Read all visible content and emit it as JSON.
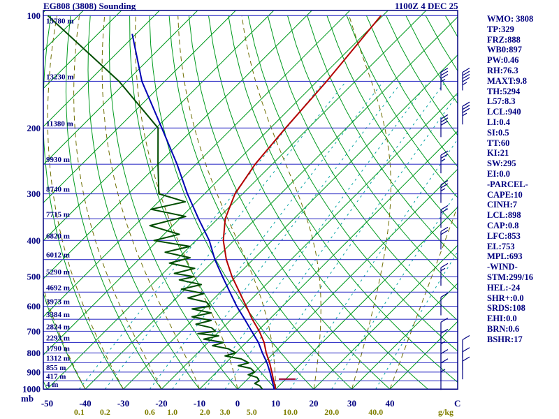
{
  "header": {
    "title": "EG808 (3808) Sounding",
    "datetime": "1100Z  4 DEC 25"
  },
  "axes": {
    "pressure_unit": "mb",
    "pressure_ticks": [
      100,
      200,
      300,
      400,
      500,
      600,
      700,
      800,
      900,
      1000
    ],
    "temp_unit": "C",
    "temp_ticks": [
      -50,
      -40,
      -30,
      -20,
      -10,
      0,
      10,
      20,
      30,
      40
    ],
    "mixing_unit": "g/kg",
    "mixing_ticks": [
      0.1,
      0.2,
      0.6,
      1.0,
      2.0,
      3.0,
      5.0,
      10.0,
      20.0,
      40.0
    ]
  },
  "indices": {
    "lines": [
      "WMO: 3808",
      "TP:329",
      "FRZ:888",
      "WB0:897",
      "PW:0.46",
      "RH:76.3",
      "MAXT:9.8",
      "TH:5294",
      "L57:8.3",
      "LCL:940",
      "LI:0.4",
      "SI:0.5",
      "TT:60",
      "KI:21",
      "SW:295",
      "EI:0.0",
      "-PARCEL-",
      "CAPE:10",
      "CINH:7",
      "LCL:898",
      "CAP:0.8",
      "LFC:853",
      "EL:753",
      "MPL:693",
      "-WIND-",
      "STM:299/16",
      "HEL:-24",
      "SHR+:0.0",
      "SRDS:108",
      "EHI:0.0",
      "BRN:0.6",
      "BSHR:17"
    ]
  },
  "colors": {
    "background": "#ffffff",
    "frame": "#000080",
    "isobar": "#3a3ac8",
    "isotherm": "#009a1e",
    "dry_adiabat": "#009a1e",
    "moist_adiabat": "#6e6e00",
    "mixing_ratio": "#00a2a2",
    "temperature_trace": "#b40000",
    "wetbulb_trace": "#0000b4",
    "dewpoint_trace": "#004d00",
    "axis_text": "#000080",
    "mixing_text": "#7f7f00",
    "wind_barb": "#000080",
    "marker": "#990033"
  },
  "chart_data": {
    "type": "line",
    "variant": "skew-t-log-p-sounding",
    "skew_deg": 45,
    "pressure_range": [
      1000,
      100
    ],
    "surface_temp_range_c": [
      -55,
      45
    ],
    "isobar_step_mb": 50,
    "heights": [
      {
        "p": 100,
        "label": "15780 m"
      },
      {
        "p": 150,
        "label": "13230 m"
      },
      {
        "p": 200,
        "label": "11380 m"
      },
      {
        "p": 250,
        "label": "9930 m"
      },
      {
        "p": 300,
        "label": "8740 m"
      },
      {
        "p": 350,
        "label": "7715 m"
      },
      {
        "p": 400,
        "label": "6820 m"
      },
      {
        "p": 450,
        "label": "6012 m"
      },
      {
        "p": 500,
        "label": "5290 m"
      },
      {
        "p": 550,
        "label": "4692 m"
      },
      {
        "p": 600,
        "label": "3973 m"
      },
      {
        "p": 650,
        "label": "3384 m"
      },
      {
        "p": 700,
        "label": "2824 m"
      },
      {
        "p": 750,
        "label": "2293 m"
      },
      {
        "p": 800,
        "label": "1790 m"
      },
      {
        "p": 850,
        "label": "1312 m"
      },
      {
        "p": 900,
        "label": "855 m"
      },
      {
        "p": 950,
        "label": "417 m"
      },
      {
        "p": 1000,
        "label": "4 m"
      }
    ],
    "series": [
      {
        "name": "temperature",
        "color": "#b40000",
        "points": [
          [
            100,
            -60.5
          ],
          [
            150,
            -57.5
          ],
          [
            200,
            -56
          ],
          [
            250,
            -54.5
          ],
          [
            300,
            -52
          ],
          [
            350,
            -48
          ],
          [
            400,
            -42.8
          ],
          [
            450,
            -37
          ],
          [
            500,
            -31
          ],
          [
            550,
            -25
          ],
          [
            600,
            -19.5
          ],
          [
            650,
            -14.5
          ],
          [
            700,
            -9.5
          ],
          [
            750,
            -5.3
          ],
          [
            800,
            -2
          ],
          [
            850,
            1.5
          ],
          [
            900,
            4.5
          ],
          [
            950,
            7.3
          ],
          [
            1000,
            10
          ]
        ]
      },
      {
        "name": "wetbulb",
        "color": "#0000b4",
        "points": [
          [
            112,
            -121
          ],
          [
            150,
            -106
          ],
          [
            200,
            -88.5
          ],
          [
            250,
            -75
          ],
          [
            300,
            -64.5
          ],
          [
            350,
            -55
          ],
          [
            400,
            -46.5
          ],
          [
            450,
            -40
          ],
          [
            500,
            -33.5
          ],
          [
            550,
            -27.5
          ],
          [
            600,
            -22
          ],
          [
            650,
            -16.5
          ],
          [
            700,
            -11.5
          ],
          [
            750,
            -6.8
          ],
          [
            800,
            -3
          ],
          [
            850,
            0.8
          ],
          [
            900,
            4
          ],
          [
            950,
            6.9
          ],
          [
            1000,
            9.6
          ]
        ]
      },
      {
        "name": "dewpoint",
        "color": "#004d00",
        "points": [
          [
            100,
            -148
          ],
          [
            150,
            -112
          ],
          [
            200,
            -89.5
          ],
          [
            250,
            -80
          ],
          [
            300,
            -72
          ],
          [
            315,
            -63
          ],
          [
            330,
            -70
          ],
          [
            345,
            -59
          ],
          [
            365,
            -66
          ],
          [
            385,
            -56
          ],
          [
            400,
            -61
          ],
          [
            415,
            -50
          ],
          [
            430,
            -55
          ],
          [
            445,
            -47
          ],
          [
            460,
            -51
          ],
          [
            475,
            -43
          ],
          [
            490,
            -47
          ],
          [
            500,
            -41
          ],
          [
            510,
            -44
          ],
          [
            525,
            -37
          ],
          [
            540,
            -41
          ],
          [
            555,
            -34
          ],
          [
            570,
            -37
          ],
          [
            585,
            -31
          ],
          [
            600,
            -29
          ],
          [
            610,
            -33
          ],
          [
            625,
            -27
          ],
          [
            640,
            -31
          ],
          [
            655,
            -25
          ],
          [
            670,
            -28
          ],
          [
            685,
            -23
          ],
          [
            700,
            -21
          ],
          [
            710,
            -25
          ],
          [
            720,
            -19
          ],
          [
            735,
            -22
          ],
          [
            750,
            -16
          ],
          [
            765,
            -18
          ],
          [
            780,
            -13
          ],
          [
            800,
            -10
          ],
          [
            815,
            -12
          ],
          [
            830,
            -7
          ],
          [
            850,
            -4
          ],
          [
            865,
            -6
          ],
          [
            880,
            -2
          ],
          [
            900,
            0
          ],
          [
            915,
            -1
          ],
          [
            930,
            2
          ],
          [
            950,
            3.5
          ],
          [
            965,
            3
          ],
          [
            980,
            5
          ],
          [
            1000,
            6.5
          ]
        ]
      }
    ],
    "lcl_marker": {
      "p": 940,
      "t_from": 8.2,
      "t_to": 12.6
    },
    "winds": [
      {
        "p": 150,
        "spd": 35
      },
      {
        "p": 200,
        "spd": 30
      },
      {
        "p": 250,
        "spd": 25
      },
      {
        "p": 300,
        "spd": 25
      },
      {
        "p": 350,
        "spd": 20
      },
      {
        "p": 400,
        "spd": 20
      },
      {
        "p": 500,
        "spd": 15
      },
      {
        "p": 600,
        "spd": 10
      },
      {
        "p": 700,
        "spd": 10
      },
      {
        "p": 750,
        "spd": 10
      },
      {
        "p": 800,
        "spd": 5
      },
      {
        "p": 850,
        "spd": 10
      },
      {
        "p": 900,
        "spd": 10
      },
      {
        "p": 950,
        "spd": 5
      }
    ],
    "winds_outer": [
      {
        "p": 150,
        "spd": 45
      },
      {
        "p": 185,
        "spd": 35
      },
      {
        "p": 780,
        "spd": 10
      },
      {
        "p": 840,
        "spd": 10
      },
      {
        "p": 890,
        "spd": 10
      }
    ]
  }
}
